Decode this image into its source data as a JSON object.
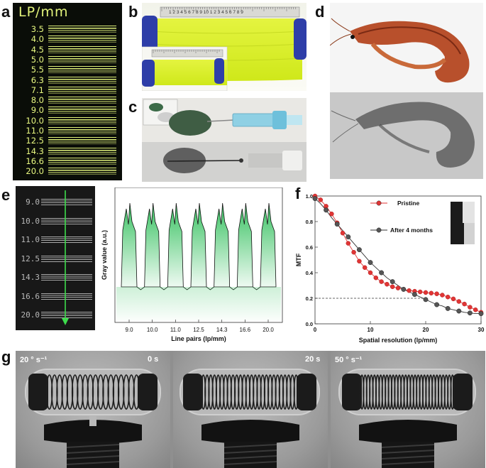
{
  "panels": {
    "a": {
      "letter": "a",
      "header": "LP/mm",
      "labels": [
        "3.5",
        "4.0",
        "4.5",
        "5.0",
        "5.5",
        "6.3",
        "7.1",
        "8.0",
        "9.0",
        "10.0",
        "11.0",
        "12.5",
        "14.3",
        "16.6",
        "20.0"
      ]
    },
    "b": {
      "letter": "b",
      "ruler_numbers": "1 2 3 4 5 6 7 8 9 10 1 2 3 4 5 6 7 8 9"
    },
    "c": {
      "letter": "c"
    },
    "d": {
      "letter": "d"
    },
    "e": {
      "letter": "e",
      "labels": [
        "9.0",
        "10.0",
        "11.0",
        "12.5",
        "14.3",
        "16.6",
        "20.0"
      ]
    },
    "f": {
      "letter": "f"
    },
    "g": {
      "letter": "g",
      "frames": [
        {
          "left_label": "20 ° s⁻¹",
          "right_label": "0 s"
        },
        {
          "left_label": "",
          "right_label": "20 s"
        },
        {
          "left_label": "50 ° s⁻¹",
          "right_label": ""
        }
      ]
    }
  },
  "chart_data": [
    {
      "panel": "e",
      "type": "line",
      "title": "",
      "xlabel": "Line pairs (lp/mm)",
      "ylabel": "Gray value (a.u.)",
      "categories": [
        "9.0",
        "10.0",
        "11.0",
        "12.5",
        "14.3",
        "16.6",
        "20.0"
      ],
      "note_y_ticks": "none",
      "fill_color": "#2fbf5a",
      "line_color": "#111111"
    },
    {
      "panel": "f",
      "type": "line",
      "xlabel": "Spatial resolution (lp/mm)",
      "ylabel": "MTF",
      "xlim": [
        0,
        30
      ],
      "ylim": [
        0.0,
        1.0
      ],
      "x_ticks": [
        0,
        10,
        20,
        30
      ],
      "y_ticks": [
        "0.0",
        "0.2",
        "0.4",
        "0.6",
        "0.8",
        "1.0"
      ],
      "reference_line": {
        "y": 0.2,
        "x_end": 20,
        "style": "dashed"
      },
      "legend_placement": "top-right",
      "series": [
        {
          "name": "Pristine",
          "color": "#e03535",
          "x": [
            0,
            1,
            2,
            3,
            4,
            5,
            6,
            7,
            8,
            9,
            10,
            11,
            12,
            13,
            14,
            15,
            16,
            17,
            18,
            19,
            20,
            21,
            22,
            23,
            24,
            25,
            26,
            27,
            28,
            29,
            30
          ],
          "y": [
            1.0,
            0.97,
            0.92,
            0.86,
            0.79,
            0.71,
            0.63,
            0.56,
            0.49,
            0.44,
            0.4,
            0.36,
            0.33,
            0.31,
            0.29,
            0.28,
            0.27,
            0.26,
            0.255,
            0.25,
            0.245,
            0.24,
            0.235,
            0.225,
            0.21,
            0.195,
            0.175,
            0.155,
            0.13,
            0.11,
            0.09
          ]
        },
        {
          "name": "After 4 months",
          "color": "#555555",
          "x": [
            0,
            1,
            2,
            3,
            4,
            5,
            6,
            7,
            8,
            9,
            10,
            11,
            12,
            13,
            14,
            15,
            16,
            17,
            18,
            19,
            20,
            21,
            22,
            23,
            24,
            25,
            26,
            27,
            28,
            29,
            30
          ],
          "y": [
            0.98,
            0.94,
            0.89,
            0.83,
            0.78,
            0.73,
            0.68,
            0.63,
            0.58,
            0.53,
            0.48,
            0.44,
            0.4,
            0.36,
            0.33,
            0.3,
            0.27,
            0.25,
            0.23,
            0.21,
            0.19,
            0.17,
            0.15,
            0.14,
            0.12,
            0.11,
            0.1,
            0.09,
            0.085,
            0.08,
            0.08
          ]
        }
      ]
    }
  ]
}
